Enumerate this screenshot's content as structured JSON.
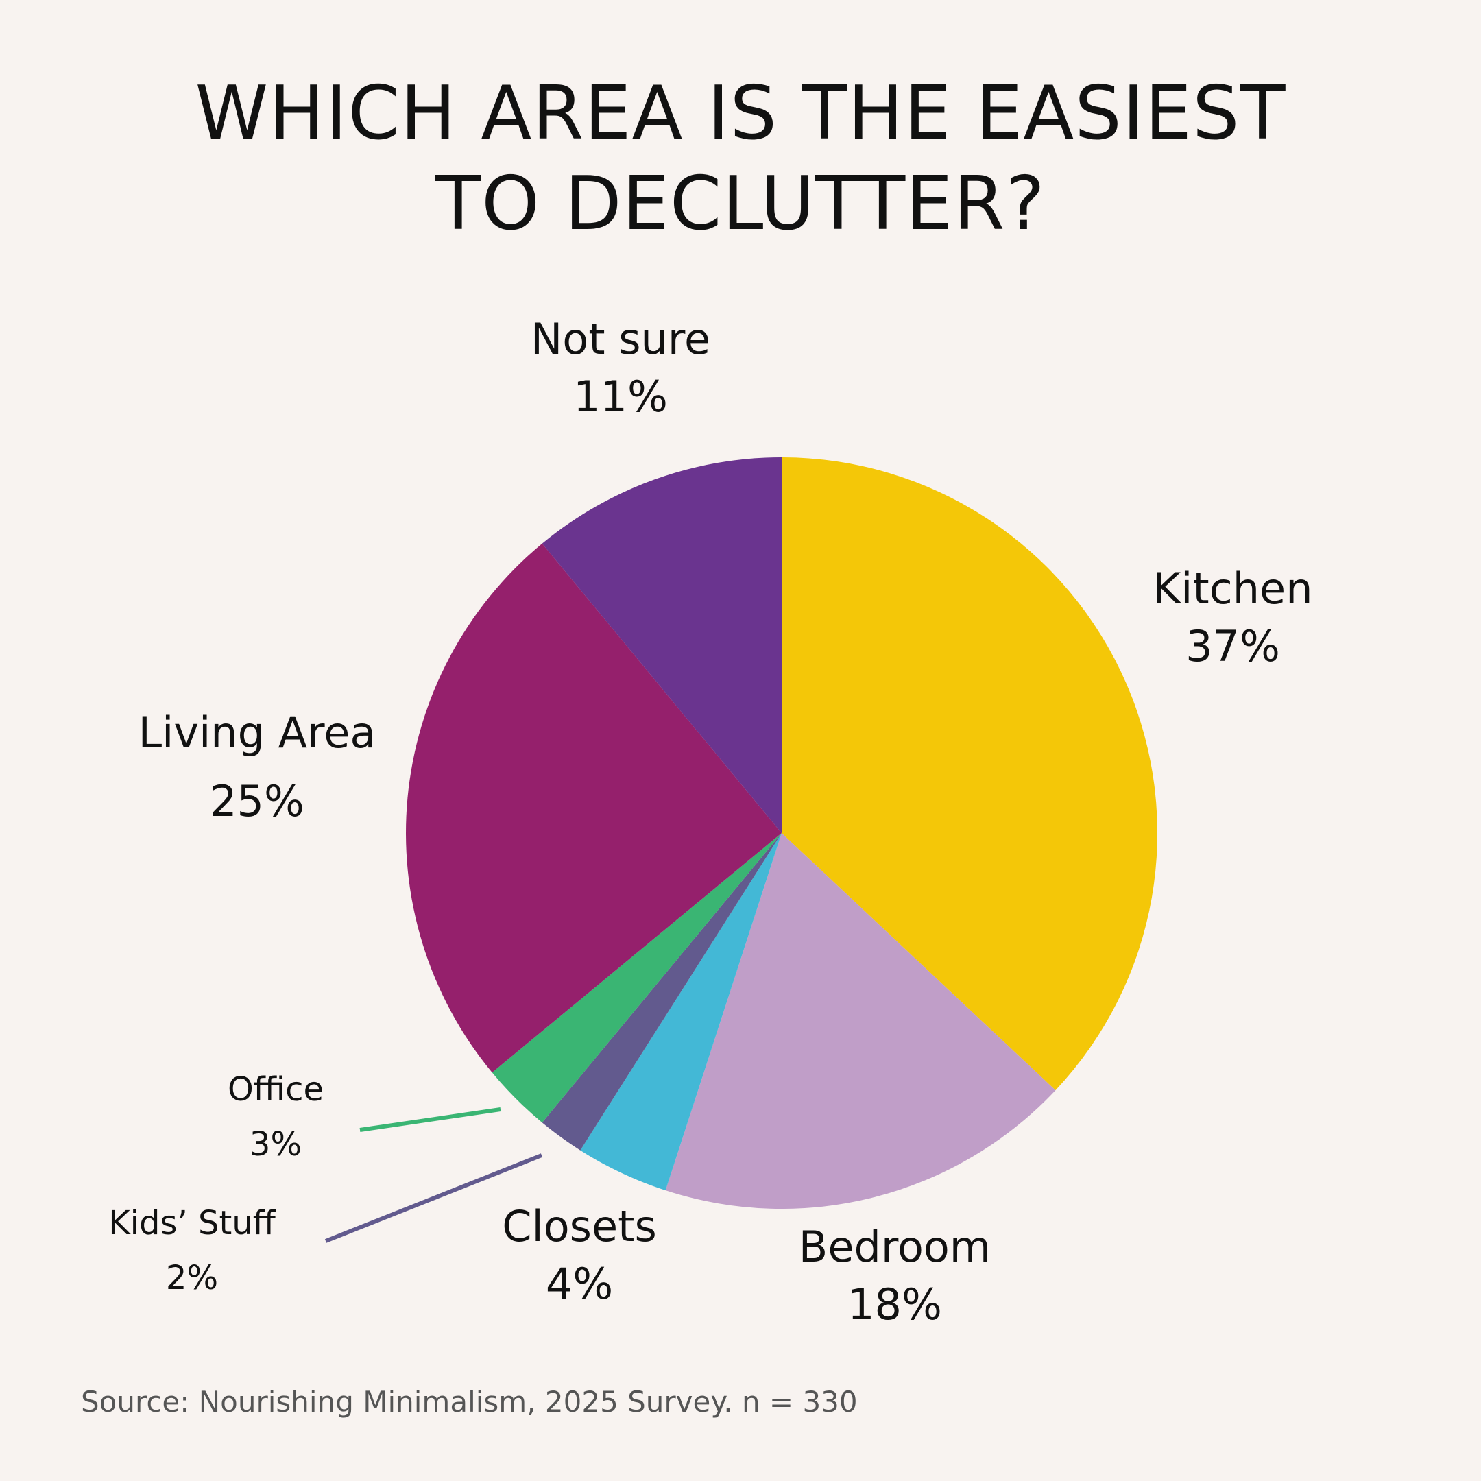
{
  "title": {
    "line1": "WHICH AREA IS THE EASIEST",
    "line2": "TO DECLUTTER?"
  },
  "source": "Source: Nourishing Minimalism, 2025 Survey. n = 330",
  "chart_data": {
    "type": "pie",
    "title": "WHICH AREA IS THE EASIEST TO DECLUTTER?",
    "unit": "%",
    "slices": [
      {
        "label": "Kitchen",
        "value": 37,
        "value_label": "37%",
        "color": "#f4c708"
      },
      {
        "label": "Bedroom",
        "value": 18,
        "value_label": "18%",
        "color": "#c09ec8"
      },
      {
        "label": "Closets",
        "value": 4,
        "value_label": "4%",
        "color": "#43b8d6"
      },
      {
        "label": "Kids’ Stuff",
        "value": 2,
        "value_label": "2%",
        "color": "#625a8e"
      },
      {
        "label": "Office",
        "value": 3,
        "value_label": "3%",
        "color": "#3ab573"
      },
      {
        "label": "Living Area",
        "value": 25,
        "value_label": "25%",
        "color": "#95206c"
      },
      {
        "label": "Not sure",
        "value": 11,
        "value_label": "11%",
        "color": "#6a348f"
      }
    ]
  }
}
